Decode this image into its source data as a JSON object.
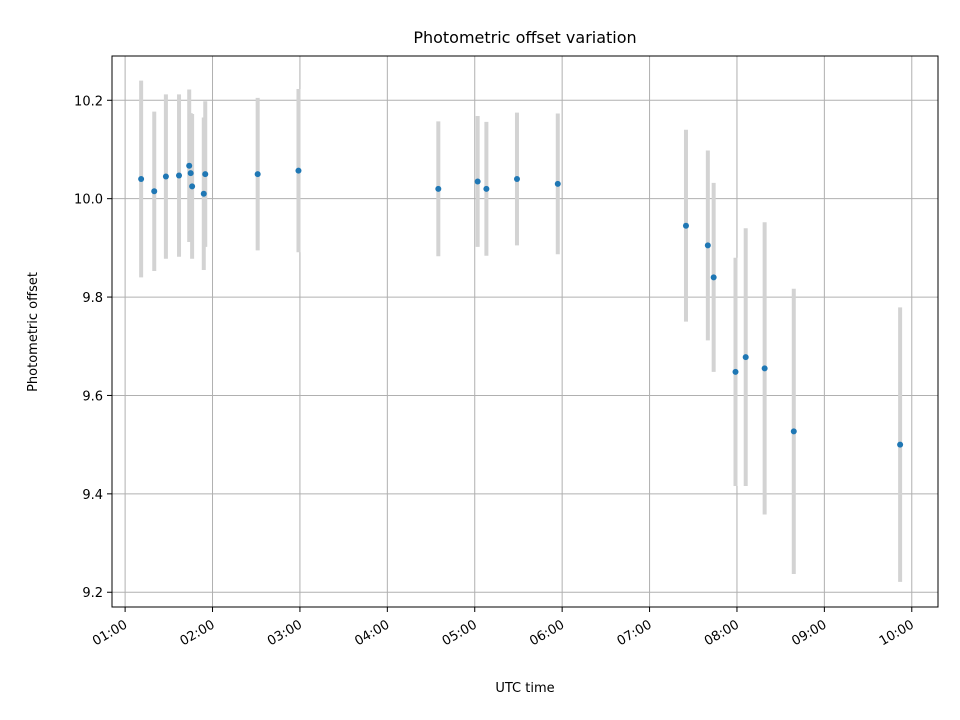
{
  "chart_data": {
    "type": "scatter",
    "title": "Photometric offset variation",
    "xlabel": "UTC time",
    "ylabel": "Photometric offset",
    "grid": true,
    "xlim": [
      "00:51",
      "10:18"
    ],
    "ylim": [
      9.17,
      10.29
    ],
    "xticks": [
      "01:00",
      "02:00",
      "03:00",
      "04:00",
      "05:00",
      "06:00",
      "07:00",
      "08:00",
      "09:00",
      "10:00"
    ],
    "yticks": [
      9.2,
      9.4,
      9.6,
      9.8,
      10.0,
      10.2
    ],
    "colors": {
      "points": "#1f77b4",
      "errorbars": "#d3d3d3",
      "grid": "#b0b0b0"
    },
    "series": [
      {
        "x": [
          "01:11",
          "01:20",
          "01:28",
          "01:37",
          "01:44",
          "01:45",
          "01:46",
          "01:54",
          "01:55",
          "02:31",
          "02:59",
          "04:35",
          "05:02",
          "05:08",
          "05:29",
          "05:57",
          "07:25",
          "07:40",
          "07:44",
          "07:59",
          "08:06",
          "08:19",
          "08:39",
          "09:52"
        ],
        "y": [
          10.04,
          10.015,
          10.045,
          10.047,
          10.067,
          10.052,
          10.025,
          10.01,
          10.05,
          10.05,
          10.057,
          10.02,
          10.035,
          10.02,
          10.04,
          10.03,
          9.945,
          9.905,
          9.84,
          9.648,
          9.678,
          9.655,
          9.527,
          9.5
        ],
        "err": [
          0.2,
          0.162,
          0.167,
          0.165,
          0.155,
          0.122,
          0.147,
          0.155,
          0.148,
          0.155,
          0.166,
          0.137,
          0.133,
          0.136,
          0.135,
          0.143,
          0.195,
          0.193,
          0.192,
          0.232,
          0.262,
          0.297,
          0.29,
          0.279
        ]
      }
    ]
  }
}
